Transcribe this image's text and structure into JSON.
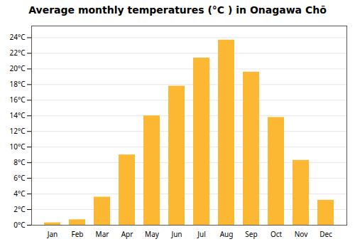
{
  "chart_data": {
    "type": "bar",
    "title": "Average monthly temperatures (°C ) in Onagawa Chō",
    "categories": [
      "Jan",
      "Feb",
      "Mar",
      "Apr",
      "May",
      "Jun",
      "Jul",
      "Aug",
      "Sep",
      "Oct",
      "Nov",
      "Dec"
    ],
    "values": [
      0.3,
      0.7,
      3.6,
      9.0,
      14.0,
      17.8,
      21.4,
      23.7,
      19.6,
      13.8,
      8.3,
      3.2
    ],
    "color": "#FDB833",
    "ylim": [
      0,
      25.5
    ],
    "yticks": [
      {
        "value": 0,
        "label": "0°C"
      },
      {
        "value": 2,
        "label": "2°C"
      },
      {
        "value": 4,
        "label": "4°C"
      },
      {
        "value": 6,
        "label": "6°C"
      },
      {
        "value": 8,
        "label": "8°C"
      },
      {
        "value": 10,
        "label": "10°C"
      },
      {
        "value": 12,
        "label": "12°C"
      },
      {
        "value": 14,
        "label": "14°C"
      },
      {
        "value": 16,
        "label": "16°C"
      },
      {
        "value": 18,
        "label": "18°C"
      },
      {
        "value": 20,
        "label": "20°C"
      },
      {
        "value": 22,
        "label": "22°C"
      },
      {
        "value": 24,
        "label": "24°C"
      }
    ],
    "grid": true
  }
}
